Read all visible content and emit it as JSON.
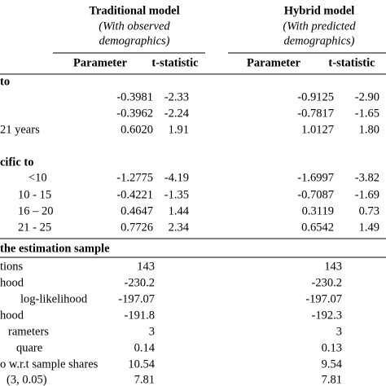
{
  "header": {
    "traditional": {
      "title": "Traditional model",
      "note": [
        "(With observed",
        "demographics)"
      ]
    },
    "hybrid": {
      "title": "Hybrid model",
      "note": [
        "(With predicted",
        "demographics)"
      ]
    }
  },
  "subheaders": [
    "Parameter",
    "t-statistic",
    "Parameter",
    "t-statistic"
  ],
  "sections": [
    {
      "title": "to",
      "rows": [
        {
          "label": null,
          "cells": [
            "-0.3981",
            "-2.33",
            "-0.9125",
            "-2.90"
          ]
        },
        {
          "label": null,
          "cells": [
            "-0.3962",
            "-2.24",
            "-0.7817",
            "-1.65"
          ]
        },
        {
          "label": "21 years",
          "cells": [
            "0.6020",
            "1.91",
            "1.0127",
            "1.80"
          ]
        }
      ]
    },
    {
      "title": "cific to",
      "rows": [
        {
          "label": "<10",
          "cells": [
            "-1.2775",
            "-4.19",
            "-1.6997",
            "-3.82"
          ]
        },
        {
          "label": "10 - 15",
          "cells": [
            "-0.4221",
            "-1.35",
            "-0.7087",
            "-1.69"
          ]
        },
        {
          "label": "16 – 20",
          "cells": [
            "0.4647",
            "1.44",
            "0.3119",
            "0.73"
          ]
        },
        {
          "label": "21 - 25",
          "cells": [
            "0.7726",
            "2.34",
            "0.6542",
            "1.49"
          ]
        }
      ]
    },
    {
      "title": "the estimation sample",
      "rows": [
        {
          "label": "tions",
          "cells": [
            "143",
            "143"
          ]
        },
        {
          "label": "hood",
          "cells": [
            "-230.2",
            "-230.2"
          ]
        },
        {
          "label": "log-likelihood",
          "cells": [
            "-197.07",
            "-197.07"
          ]
        },
        {
          "label": "hood",
          "cells": [
            "-191.8",
            "-192.3"
          ]
        },
        {
          "label": "rameters",
          "cells": [
            "3",
            "3"
          ]
        },
        {
          "label": "quare",
          "cells": [
            "0.14",
            "0.13"
          ]
        },
        {
          "label": "o w.r.t sample shares",
          "cells": [
            "10.54",
            "9.54"
          ]
        },
        {
          "label": "(3, 0.05)",
          "cells": [
            "7.81",
            "7.81"
          ]
        }
      ]
    }
  ]
}
